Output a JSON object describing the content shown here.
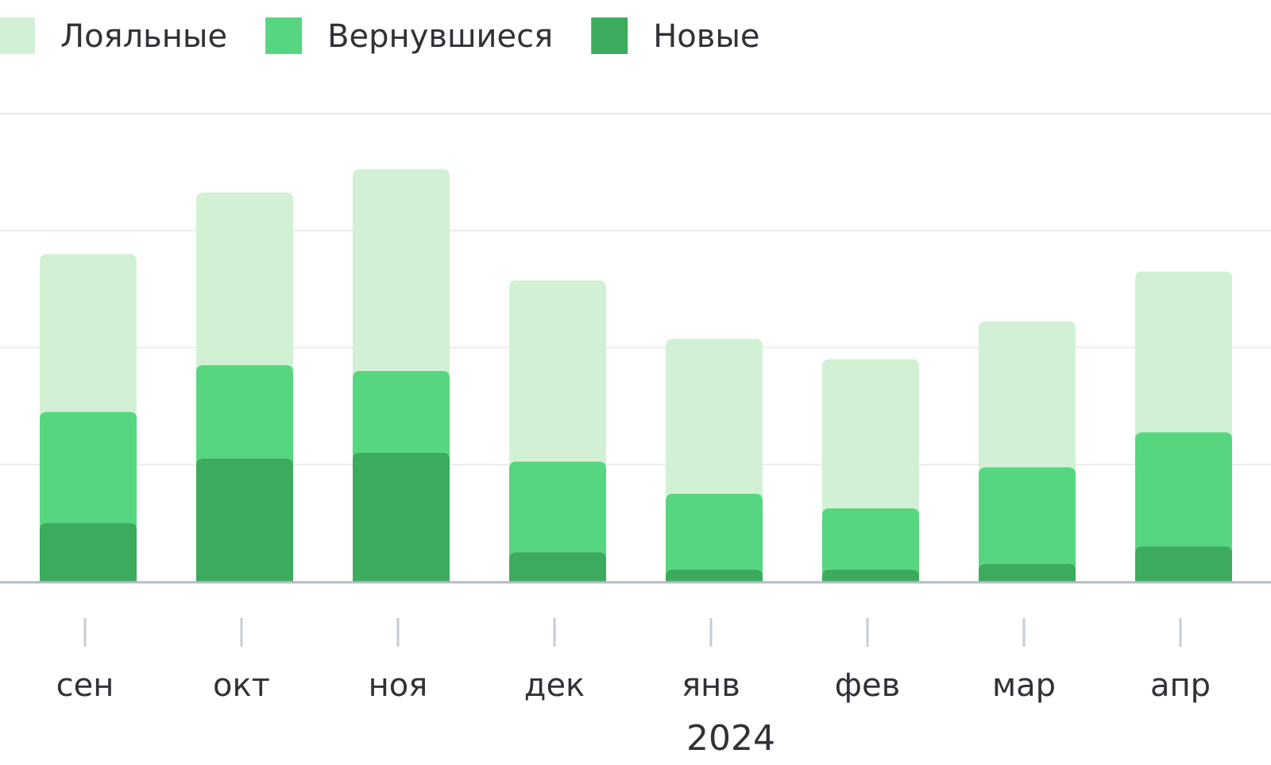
{
  "chart_data": {
    "type": "bar",
    "stacked": true,
    "categories": [
      "сен",
      "окт",
      "ноя",
      "дек",
      "янв",
      "фев",
      "мар",
      "апр"
    ],
    "year_label": "2024",
    "series": [
      {
        "name": "Новые",
        "color": "#3dab5e",
        "values": [
          10,
          21,
          22,
          5,
          2,
          2,
          3,
          6
        ]
      },
      {
        "name": "Вернувшиеся",
        "color": "#57d680",
        "values": [
          19,
          16,
          14,
          15.5,
          13,
          10.5,
          16.5,
          19.5
        ]
      },
      {
        "name": "Лояльные",
        "color": "#d2f1d4",
        "values": [
          27,
          29.5,
          34.5,
          31,
          26.5,
          25.5,
          25,
          27.5
        ]
      }
    ],
    "legend_order": [
      "Лояльные",
      "Вернувшиеся",
      "Новые"
    ],
    "legend_position": "top-left",
    "ylim": [
      0,
      80
    ],
    "grid": true,
    "y_tick_labels": false,
    "colors": {
      "grid": "#ececec",
      "baseline": "#b3bcc6",
      "tick": "#c4ccd4",
      "text": "#2f3237"
    }
  }
}
